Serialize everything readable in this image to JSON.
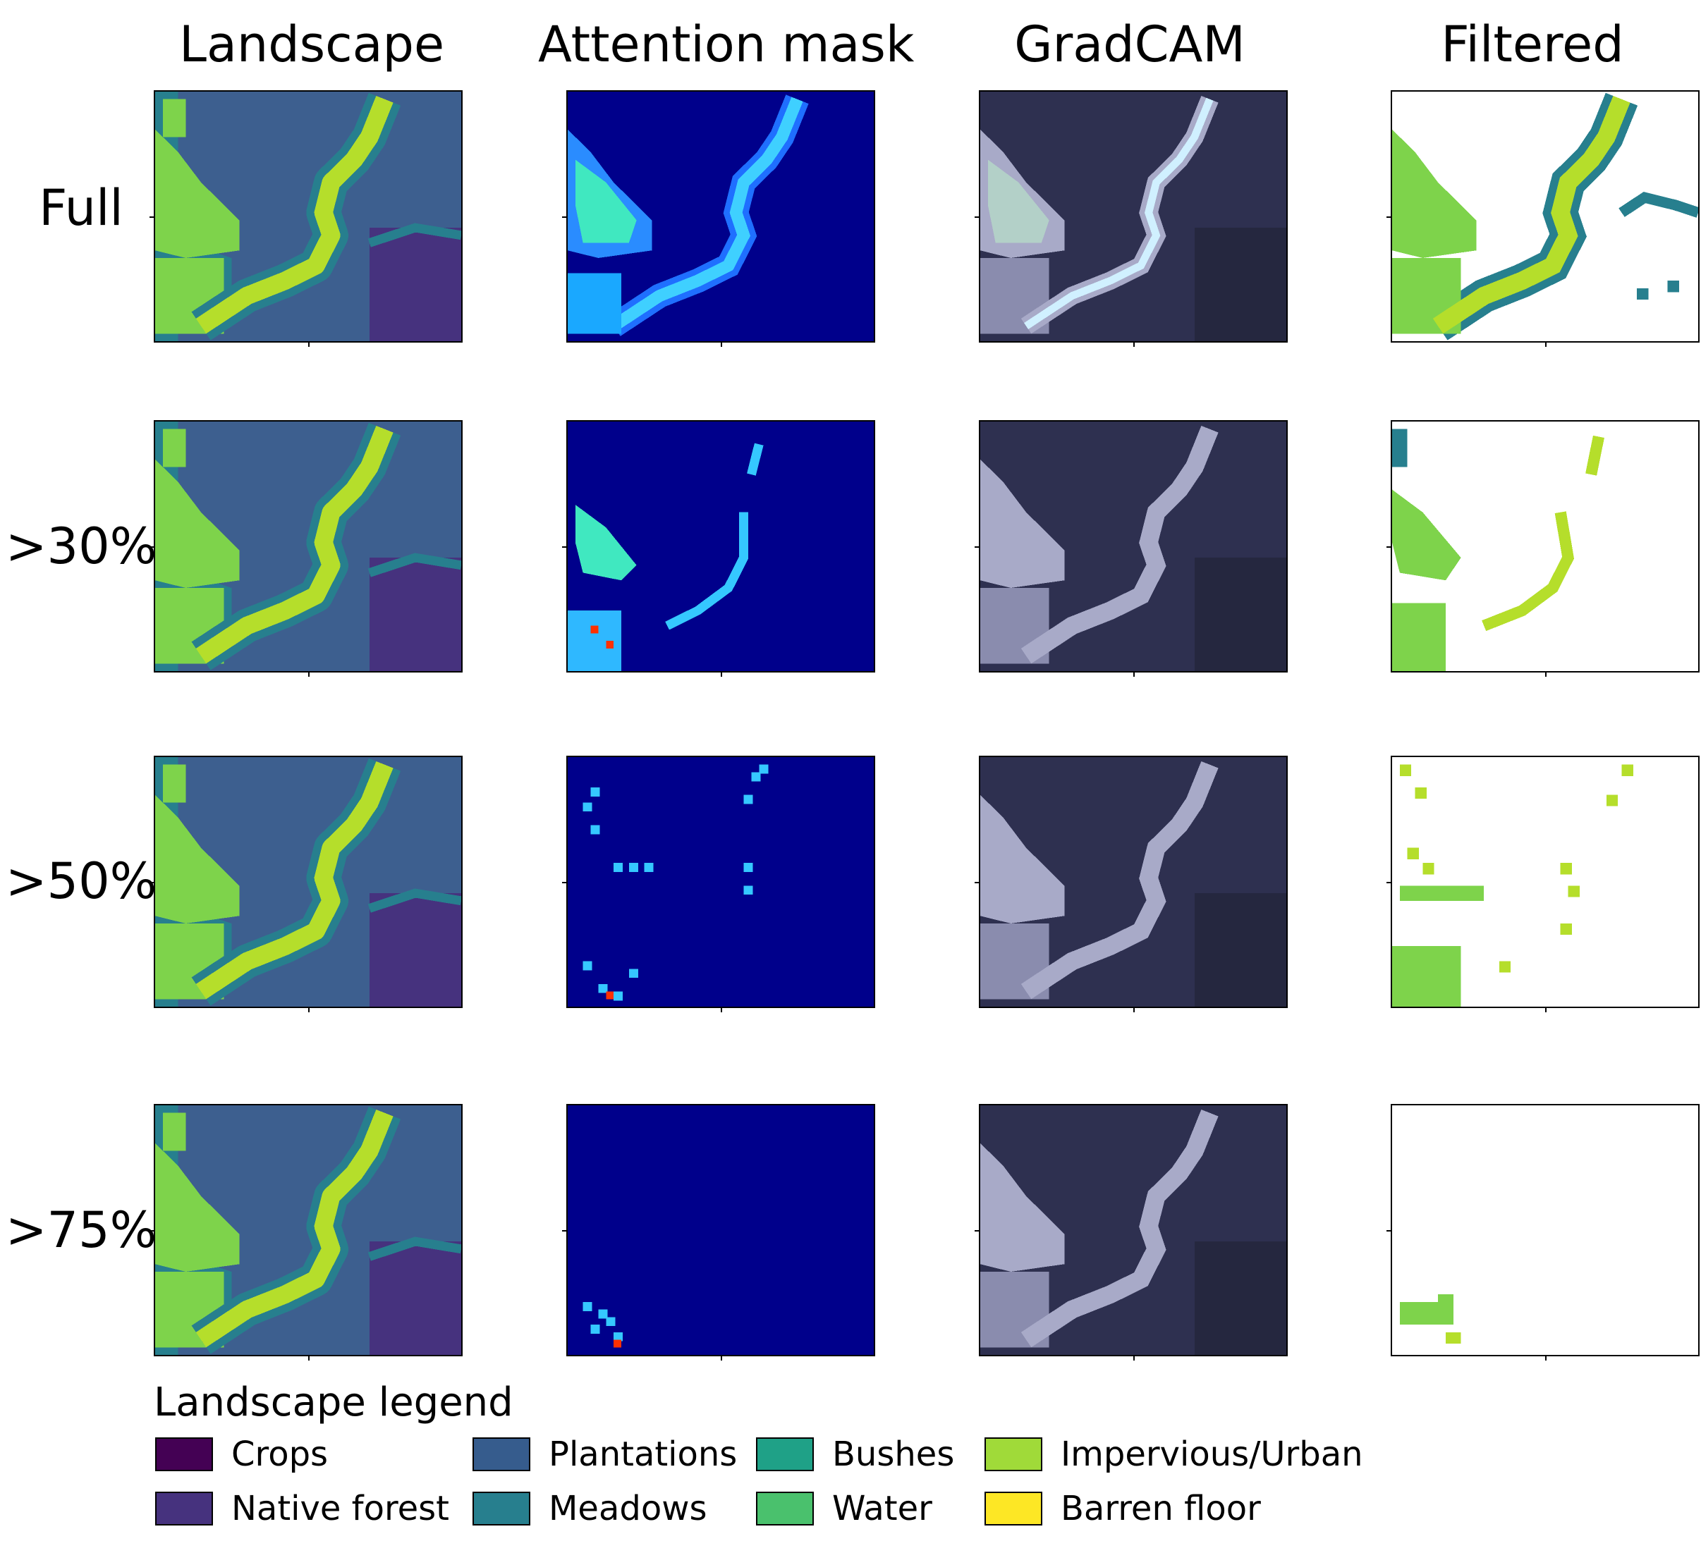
{
  "columns": [
    "Landscape",
    "Attention mask",
    "GradCAM",
    "Filtered"
  ],
  "rows": [
    "Full",
    ">30%",
    ">50%",
    ">75%"
  ],
  "legend": {
    "title": "Landscape legend",
    "items": [
      {
        "label": "Crops",
        "color": "#440154"
      },
      {
        "label": "Native forest",
        "color": "#46327e"
      },
      {
        "label": "Plantations",
        "color": "#365c8d"
      },
      {
        "label": "Meadows",
        "color": "#277f8e"
      },
      {
        "label": "Bushes",
        "color": "#1fa187"
      },
      {
        "label": "Water",
        "color": "#4ac16d"
      },
      {
        "label": "Impervious/Urban",
        "color": "#a0da39"
      },
      {
        "label": "Barren floor",
        "color": "#fde725"
      }
    ]
  },
  "colors": {
    "landscape_bg": "#3d5f8f",
    "landscape_forest": "#46327e",
    "landscape_meadow": "#277f8e",
    "landscape_water": "#7ed34b",
    "landscape_urban": "#b5de2b",
    "attention_bg": "#00008b",
    "attention_hot": "#ff3000",
    "gradcam_bg": "#2e3050",
    "gradcam_light": "#a8aac8",
    "filtered_bg": "#ffffff"
  }
}
